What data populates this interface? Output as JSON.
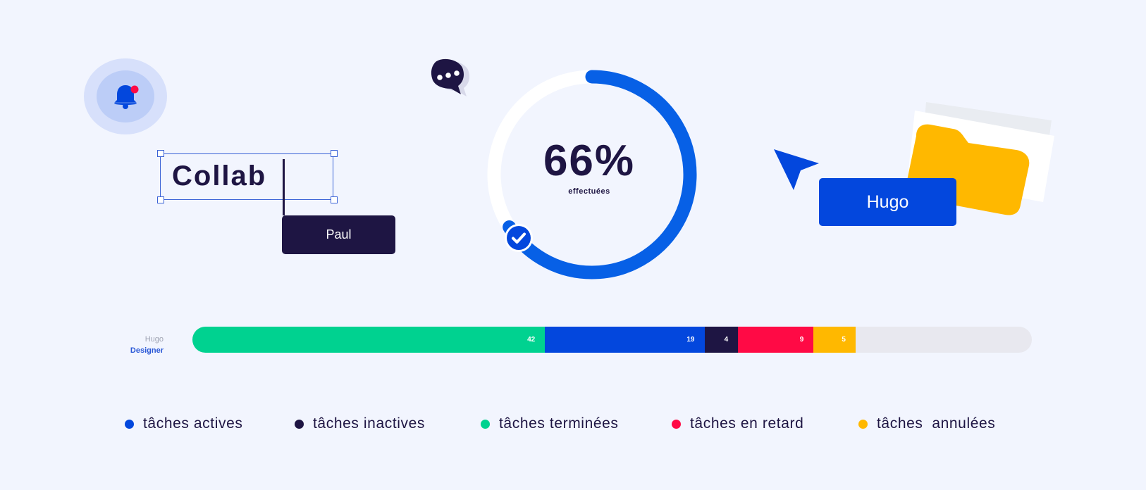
{
  "colors": {
    "background": "#f2f5fe",
    "navy": "#1e1543",
    "blue": "#0347dd",
    "green": "#00d290",
    "red": "#ff0a45",
    "yellow": "#ffb800",
    "track": "#e8e8ef"
  },
  "icons": {
    "bell": "bell-icon",
    "chat": "chat-bubble-icon",
    "check": "check-circle-icon",
    "cursor": "cursor-arrow-icon",
    "folder": "folder-icon"
  },
  "editor": {
    "collab_text": "Collab",
    "collaborator_label": "Paul"
  },
  "progress": {
    "value_text": "66%",
    "value": 0.66,
    "label": "effectuées"
  },
  "cursor_user": {
    "label": "Hugo"
  },
  "task_bar": {
    "user_name": "Hugo",
    "user_role": "Designer",
    "total_scale": 100,
    "segments": [
      {
        "key": "terminees",
        "value": 42,
        "label": "42",
        "color": "#00d290"
      },
      {
        "key": "actives",
        "value": 19,
        "label": "19",
        "color": "#0347dd"
      },
      {
        "key": "inactives",
        "value": 4,
        "label": "4",
        "color": "#1e1543"
      },
      {
        "key": "retard",
        "value": 9,
        "label": "9",
        "color": "#ff0a45"
      },
      {
        "key": "annulees",
        "value": 5,
        "label": "5",
        "color": "#ffb800"
      }
    ]
  },
  "legend": [
    {
      "label": "tâches actives",
      "color": "#0347dd"
    },
    {
      "label": "tâches inactives",
      "color": "#1e1543"
    },
    {
      "label": "tâches terminées",
      "color": "#00d290"
    },
    {
      "label": "tâches en retard",
      "color": "#ff0a45"
    },
    {
      "label": "tâches  annulées",
      "color": "#ffb800"
    }
  ]
}
